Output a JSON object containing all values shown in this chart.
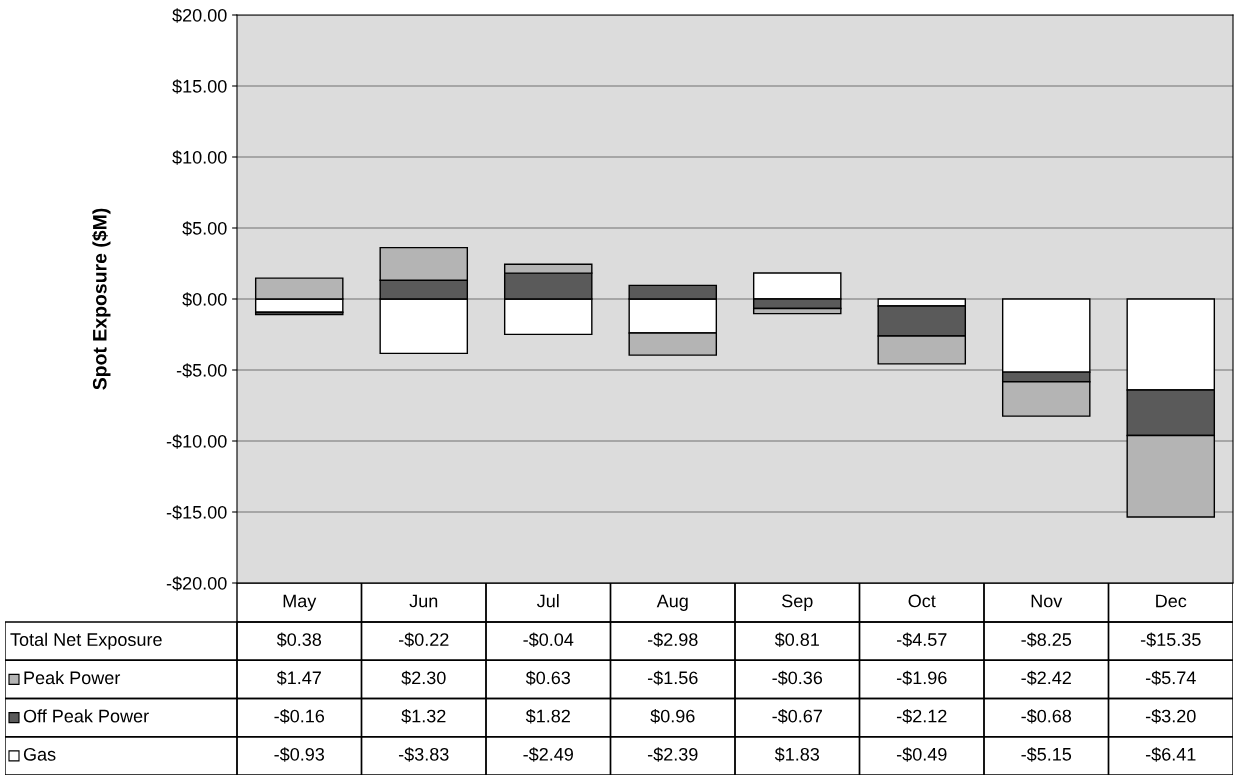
{
  "chart_data": {
    "type": "bar",
    "stacked": true,
    "ylabel": "Spot Exposure ($M)",
    "categories": [
      "May",
      "Jun",
      "Jul",
      "Aug",
      "Sep",
      "Oct",
      "Nov",
      "Dec"
    ],
    "series": [
      {
        "name": "Gas",
        "color": "#ffffff",
        "values": [
          -0.93,
          -3.83,
          -2.49,
          -2.39,
          1.83,
          -0.49,
          -5.15,
          -6.41
        ],
        "value_labels": [
          "-$0.93",
          "-$3.83",
          "-$2.49",
          "-$2.39",
          "$1.83",
          "-$0.49",
          "-$5.15",
          "-$6.41"
        ]
      },
      {
        "name": "Off Peak Power",
        "color": "#5a5a5a",
        "values": [
          -0.16,
          1.32,
          1.82,
          0.96,
          -0.67,
          -2.12,
          -0.68,
          -3.2
        ],
        "value_labels": [
          "-$0.16",
          "$1.32",
          "$1.82",
          "$0.96",
          "-$0.67",
          "-$2.12",
          "-$0.68",
          "-$3.20"
        ]
      },
      {
        "name": "Peak Power",
        "color": "#b4b4b4",
        "values": [
          1.47,
          2.3,
          0.63,
          -1.56,
          -0.36,
          -1.96,
          -2.42,
          -5.74
        ],
        "value_labels": [
          "$1.47",
          "$2.30",
          "$0.63",
          "-$1.56",
          "-$0.36",
          "-$1.96",
          "-$2.42",
          "-$5.74"
        ]
      }
    ],
    "annotations": [
      "Total Net Exposure",
      "$0.38",
      "-$0.22",
      "-$0.04",
      "-$2.98",
      "$0.81",
      "-$4.57",
      "-$8.25",
      "-$15.35"
    ],
    "legend": "bottom",
    "ylim": [
      -20,
      20
    ],
    "yticks": [
      {
        "value": -20,
        "label": "-$20.00"
      },
      {
        "value": -15,
        "label": "-$15.00"
      },
      {
        "value": -10,
        "label": "-$10.00"
      },
      {
        "value": -5,
        "label": "-$5.00"
      },
      {
        "value": 0,
        "label": "$0.00"
      },
      {
        "value": 5,
        "label": "$5.00"
      },
      {
        "value": 10,
        "label": "$10.00"
      },
      {
        "value": 15,
        "label": "$15.00"
      },
      {
        "value": 20,
        "label": "$20.00"
      }
    ],
    "grid": "y"
  }
}
